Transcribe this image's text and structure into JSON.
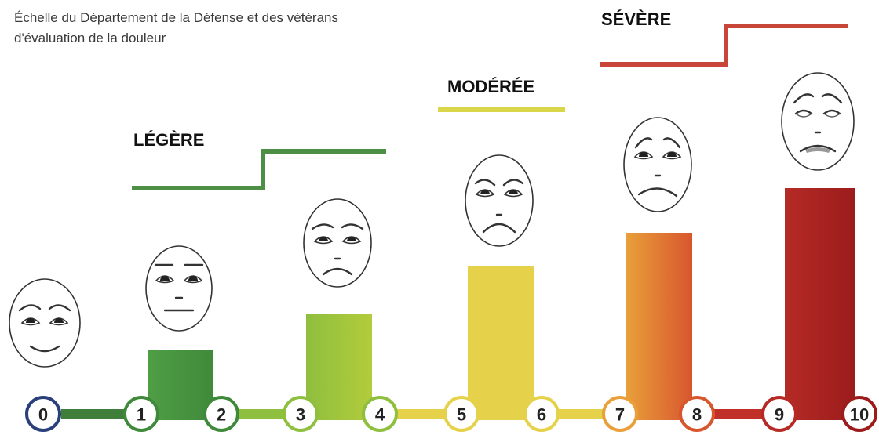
{
  "title": [
    "Échelle du Département de la Défense et des vétérans",
    "d'évaluation de la douleur"
  ],
  "levels": [
    "LÉGÈRE",
    "MODÉRÉE",
    "SÉVÈRE"
  ],
  "scale": [
    0,
    1,
    2,
    3,
    4,
    5,
    6,
    7,
    8,
    9,
    10
  ]
}
